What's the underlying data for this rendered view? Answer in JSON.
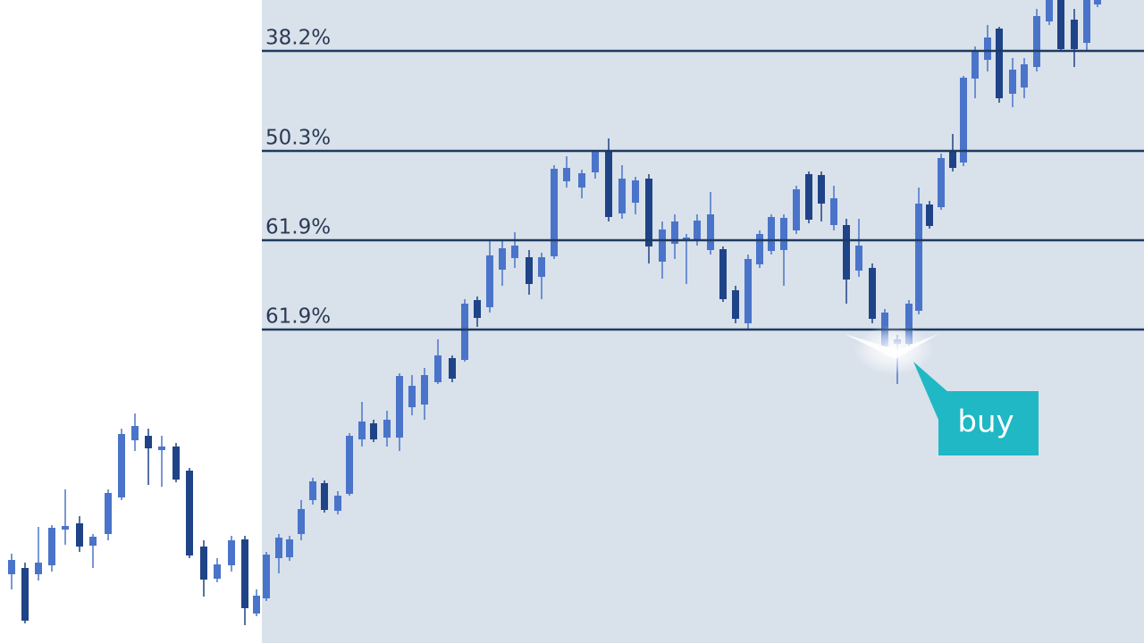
{
  "levels": [
    "38.2%",
    "50.3%",
    "61.9%",
    "61.9%"
  ],
  "signal": "buy"
}
